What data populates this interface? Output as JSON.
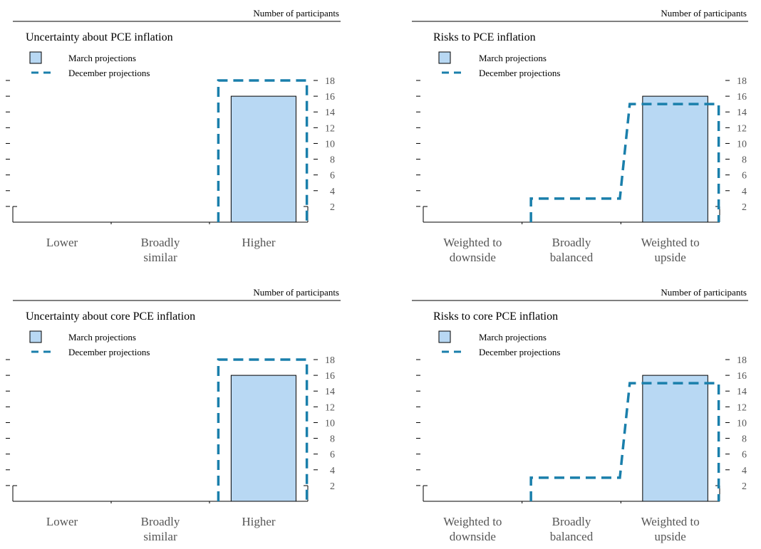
{
  "legend": {
    "march_label": "March projections",
    "december_label": "December projections"
  },
  "colors": {
    "march_fill": "#b8d8f3",
    "march_stroke": "#000000",
    "december_line": "#1a7fab",
    "axis": "#000000",
    "label_gray": "#555555"
  },
  "units_label": "Number of participants",
  "chart_data": [
    {
      "type": "bar",
      "title": "Uncertainty about PCE inflation",
      "ylabel": "Number of participants",
      "categories": [
        [
          "Lower"
        ],
        [
          "Broadly",
          "similar"
        ],
        [
          "Higher"
        ]
      ],
      "series": [
        {
          "name": "March projections",
          "values": [
            0,
            0,
            16
          ]
        },
        {
          "name": "December projections",
          "values": [
            0,
            0,
            18
          ]
        }
      ],
      "ylim": [
        0,
        18
      ],
      "yticks": [
        "2",
        "4",
        "6",
        "8",
        "10",
        "12",
        "14",
        "16",
        "18"
      ]
    },
    {
      "type": "bar",
      "title": "Risks to PCE inflation",
      "ylabel": "Number of participants",
      "categories": [
        [
          "Weighted to",
          "downside"
        ],
        [
          "Broadly",
          "balanced"
        ],
        [
          "Weighted to",
          "upside"
        ]
      ],
      "series": [
        {
          "name": "March projections",
          "values": [
            0,
            0,
            16
          ]
        },
        {
          "name": "December projections",
          "values": [
            0,
            3,
            15
          ]
        }
      ],
      "ylim": [
        0,
        18
      ],
      "yticks": [
        "2",
        "4",
        "6",
        "8",
        "10",
        "12",
        "14",
        "16",
        "18"
      ]
    },
    {
      "type": "bar",
      "title": "Uncertainty about core PCE inflation",
      "ylabel": "Number of participants",
      "categories": [
        [
          "Lower"
        ],
        [
          "Broadly",
          "similar"
        ],
        [
          "Higher"
        ]
      ],
      "series": [
        {
          "name": "March projections",
          "values": [
            0,
            0,
            16
          ]
        },
        {
          "name": "December projections",
          "values": [
            0,
            0,
            18
          ]
        }
      ],
      "ylim": [
        0,
        18
      ],
      "yticks": [
        "2",
        "4",
        "6",
        "8",
        "10",
        "12",
        "14",
        "16",
        "18"
      ]
    },
    {
      "type": "bar",
      "title": "Risks to core PCE inflation",
      "ylabel": "Number of participants",
      "categories": [
        [
          "Weighted to",
          "downside"
        ],
        [
          "Broadly",
          "balanced"
        ],
        [
          "Weighted to",
          "upside"
        ]
      ],
      "series": [
        {
          "name": "March projections",
          "values": [
            0,
            0,
            16
          ]
        },
        {
          "name": "December projections",
          "values": [
            0,
            3,
            15
          ]
        }
      ],
      "ylim": [
        0,
        18
      ],
      "yticks": [
        "2",
        "4",
        "6",
        "8",
        "10",
        "12",
        "14",
        "16",
        "18"
      ]
    }
  ]
}
